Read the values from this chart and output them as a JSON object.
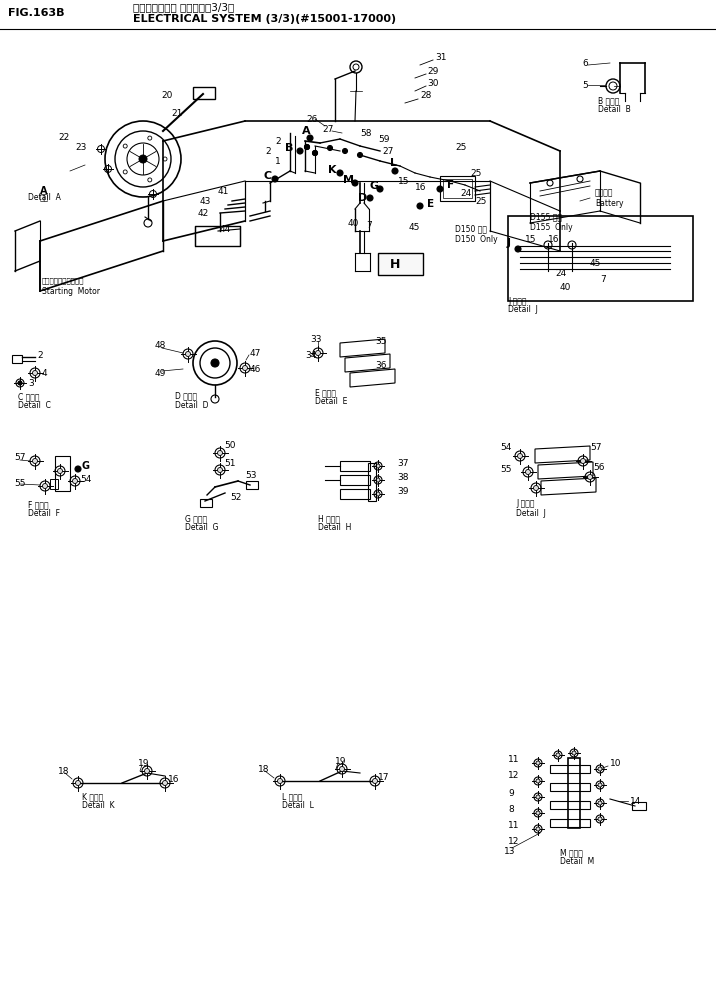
{
  "title_japanese": "エレクトリカル システム（3/3）",
  "title_english": "ELECTRICAL SYSTEM (3/3)(#15001-17000)",
  "fig_label": "FIG.163B",
  "bg": "#ffffff",
  "lc": "#000000",
  "fig_w": 7.16,
  "fig_h": 9.91,
  "dpi": 100
}
